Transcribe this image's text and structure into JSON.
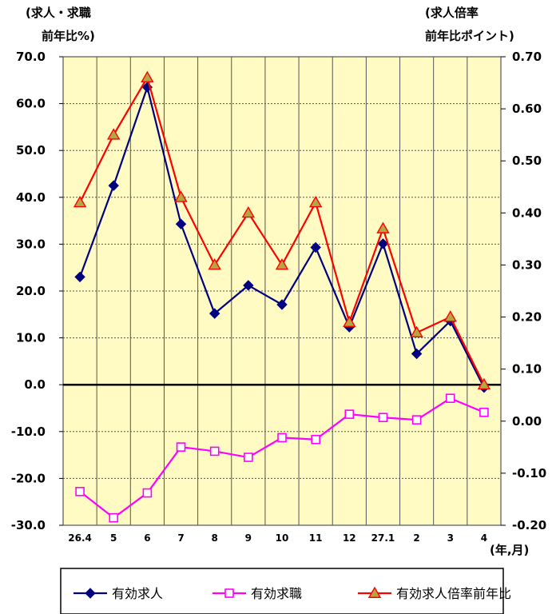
{
  "chart_data": {
    "type": "line",
    "categories": [
      "26.4",
      "5",
      "6",
      "7",
      "8",
      "9",
      "10",
      "11",
      "12",
      "27.1",
      "2",
      "3",
      "4"
    ],
    "x_unit_label": "(年,月)",
    "left_axis": {
      "title_line1": "(求人・求職",
      "title_line2": "前年比%)",
      "ylim": [
        -30,
        70
      ],
      "ticks": [
        "70.0",
        "60.0",
        "50.0",
        "40.0",
        "30.0",
        "20.0",
        "10.0",
        "0.0",
        "-10.0",
        "-20.0",
        "-30.0"
      ]
    },
    "right_axis": {
      "title_line1": "(求人倍率",
      "title_line2": "前年比ポイント)",
      "ylim": [
        -0.2,
        0.7
      ],
      "ticks": [
        "0.70",
        "0.60",
        "0.50",
        "0.40",
        "0.30",
        "0.20",
        "0.10",
        "0.00",
        "-0.10",
        "-0.20"
      ]
    },
    "grid": true,
    "plot_background": "#fffbc3",
    "series": [
      {
        "name": "有効求人",
        "axis": "left",
        "color": "#000080",
        "marker": "diamond",
        "values": [
          23.0,
          42.5,
          63.5,
          34.3,
          15.2,
          21.2,
          17.1,
          29.3,
          12.3,
          30.1,
          6.6,
          13.6,
          -0.6
        ]
      },
      {
        "name": "有効求職",
        "axis": "left",
        "color": "#ff00ff",
        "marker": "square",
        "values": [
          -22.8,
          -28.4,
          -23.1,
          -13.3,
          -14.2,
          -15.5,
          -11.3,
          -11.7,
          -6.3,
          -7.0,
          -7.5,
          -2.9,
          -5.9
        ]
      },
      {
        "name": "有効求人倍率前年比",
        "axis": "right",
        "color": "#ff0000",
        "marker": "triangle",
        "marker_fill": "#b5a642",
        "values": [
          0.42,
          0.55,
          0.66,
          0.43,
          0.3,
          0.4,
          0.3,
          0.42,
          0.19,
          0.37,
          0.17,
          0.2,
          0.07
        ]
      }
    ],
    "legend_position": "bottom"
  }
}
